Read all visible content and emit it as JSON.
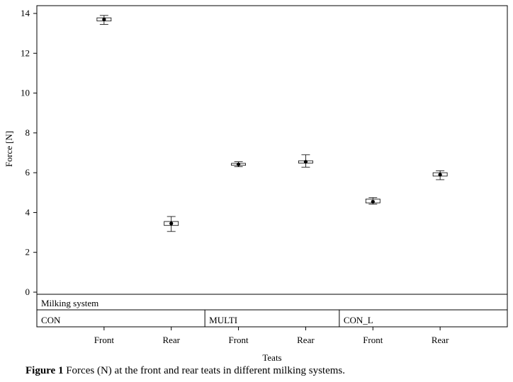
{
  "chart_data": {
    "type": "box",
    "ylabel": "Force [N]",
    "xlabel": "Teats",
    "ylim": [
      0,
      14
    ],
    "yticks": [
      0,
      2,
      4,
      6,
      8,
      10,
      12,
      14
    ],
    "grid": false,
    "panel_header": "Milking system",
    "groups": [
      {
        "label": "CON",
        "categories": [
          "Front",
          "Rear"
        ]
      },
      {
        "label": "MULTI",
        "categories": [
          "Front",
          "Rear"
        ]
      },
      {
        "label": "CON_L",
        "categories": [
          "Front",
          "Rear"
        ]
      }
    ],
    "boxes": [
      {
        "group": "CON",
        "teat": "Front",
        "mean": 13.7,
        "q1": 13.62,
        "q3": 13.78,
        "min": 13.45,
        "max": 13.9
      },
      {
        "group": "CON",
        "teat": "Rear",
        "mean": 3.45,
        "q1": 3.35,
        "q3": 3.55,
        "min": 3.05,
        "max": 3.8
      },
      {
        "group": "MULTI",
        "teat": "Front",
        "mean": 6.42,
        "q1": 6.37,
        "q3": 6.47,
        "min": 6.3,
        "max": 6.55
      },
      {
        "group": "MULTI",
        "teat": "Rear",
        "mean": 6.55,
        "q1": 6.48,
        "q3": 6.6,
        "min": 6.28,
        "max": 6.9
      },
      {
        "group": "CON_L",
        "teat": "Front",
        "mean": 4.55,
        "q1": 4.48,
        "q3": 4.68,
        "min": 4.42,
        "max": 4.75
      },
      {
        "group": "CON_L",
        "teat": "Rear",
        "mean": 5.9,
        "q1": 5.83,
        "q3": 6.0,
        "min": 5.65,
        "max": 6.1
      }
    ]
  },
  "caption": {
    "label": "Figure 1",
    "text": " Forces (N) at the front and rear teats in different milking systems."
  }
}
